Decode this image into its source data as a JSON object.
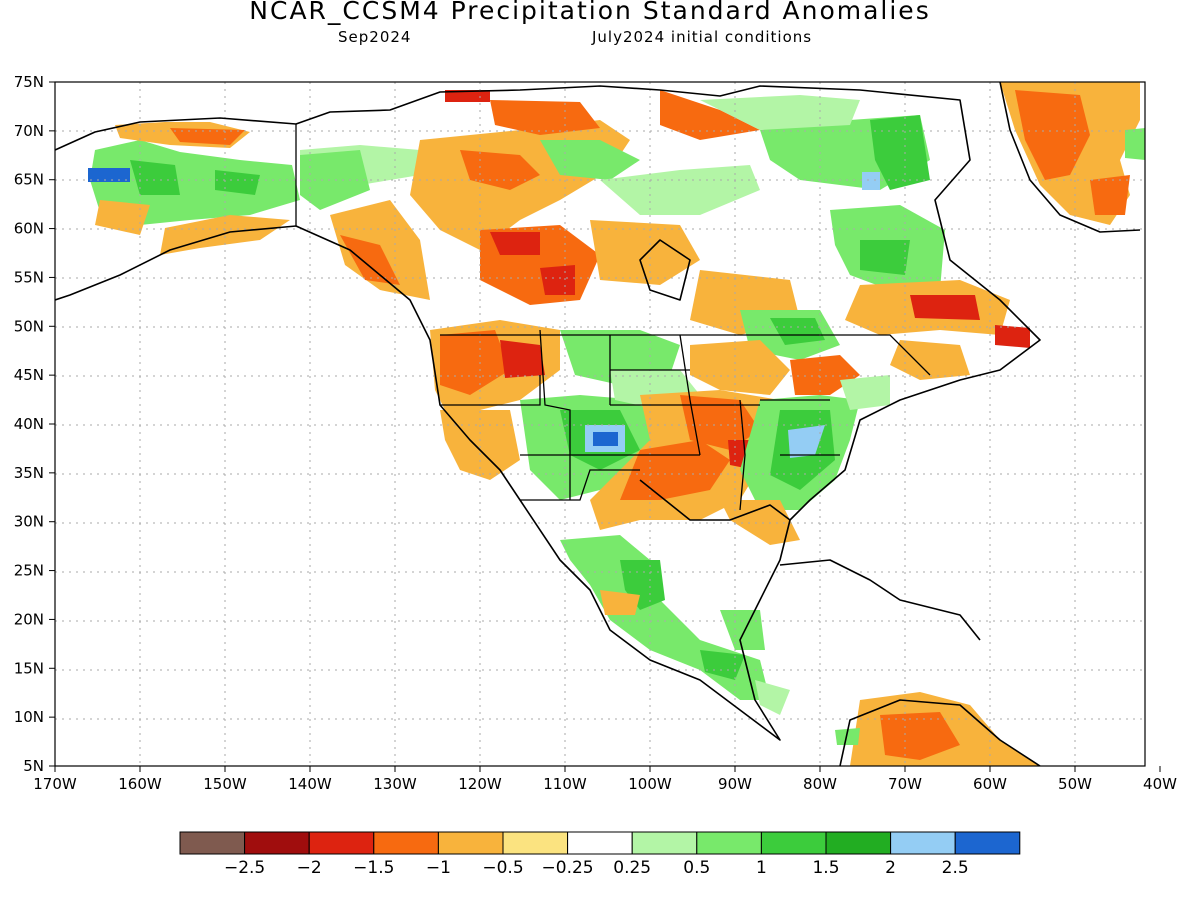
{
  "title": "NCAR_CCSM4 Precipitation Standard Anomalies",
  "subtitle_left": "Sep2024",
  "subtitle_right": "July2024 initial conditions",
  "map": {
    "lon_ticks": [
      "170W",
      "160W",
      "150W",
      "140W",
      "130W",
      "120W",
      "110W",
      "100W",
      "90W",
      "80W",
      "70W",
      "60W",
      "50W",
      "40W"
    ],
    "lat_ticks": [
      "75N",
      "70N",
      "65N",
      "60N",
      "55N",
      "50N",
      "45N",
      "40N",
      "35N",
      "30N",
      "25N",
      "20N",
      "15N",
      "10N",
      "5N"
    ],
    "grid": true
  },
  "colorbar": {
    "colors": [
      "#7f5a4f",
      "#a00d0d",
      "#dd2310",
      "#f76a10",
      "#f8b33c",
      "#fbe380",
      "#ffffff",
      "#b3f5a6",
      "#78e96b",
      "#3ccc3c",
      "#22ad22",
      "#94cdf4",
      "#1c66d0"
    ],
    "labels": [
      "−2.5",
      "−2",
      "−1.5",
      "−1",
      "−0.5",
      "−0.25",
      "0.25",
      "0.5",
      "1",
      "1.5",
      "2",
      "2.5"
    ]
  }
}
